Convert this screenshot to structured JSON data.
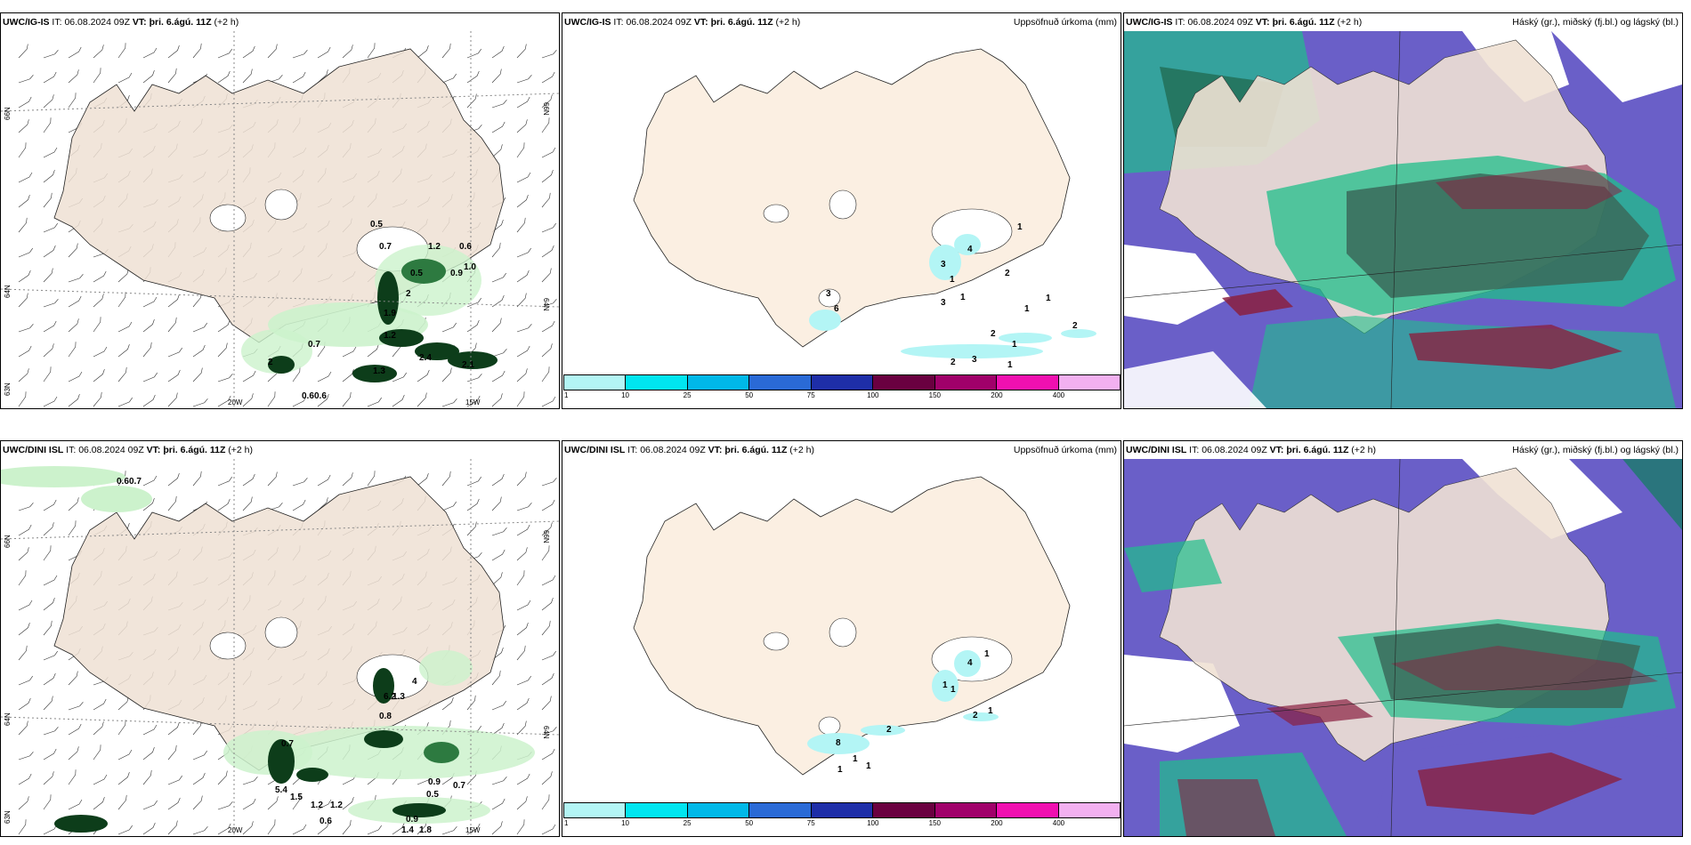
{
  "colors": {
    "land": "#efe1d4",
    "land_light": "#fbefe2",
    "light_green": "#ccf2cc",
    "mid_green": "#5fb06e",
    "dark_green": "#0d3d1a",
    "cloud_high": "#6a5fc8",
    "cloud_mid": "#1fbf8a",
    "cloud_low": "#8a2040"
  },
  "rows": [
    {
      "wind": {
        "model": "UWC/IG-IS",
        "it_label": "IT:",
        "it_value": "06.08.2024 09Z",
        "vt_label": "VT:",
        "vt_value": "þri. 6.ágú. 11Z",
        "lead": "(+2 h)",
        "precip_labels": [
          "0.5",
          "0.7",
          "1.2",
          "0.6",
          "0.5",
          "0.9",
          "1.0",
          "2",
          "0.7",
          "1.2",
          "2.4",
          "2.1",
          "2",
          "1.3",
          "0.6",
          "0.6",
          "1.9"
        ]
      },
      "precip": {
        "model": "UWC/IG-IS",
        "it_label": "IT:",
        "it_value": "06.08.2024 09Z",
        "vt_label": "VT:",
        "vt_value": "þri. 6.ágú. 11Z",
        "lead": "(+2 h)",
        "title": "Uppsöfnuð úrkoma (mm)",
        "labels": [
          "1",
          "2",
          "3",
          "4",
          "1",
          "3",
          "1",
          "1",
          "1",
          "1",
          "3",
          "6",
          "3",
          "2",
          "2",
          "1",
          "2"
        ]
      },
      "cloud": {
        "model": "UWC/IG-IS",
        "it_label": "IT:",
        "it_value": "06.08.2024 09Z",
        "vt_label": "VT:",
        "vt_value": "þri. 6.ágú. 11Z",
        "lead": "(+2 h)",
        "title": "Háský (gr.), miðský (fj.bl.) og lágský (bl.)"
      }
    },
    {
      "wind": {
        "model": "UWC/DINI ISL",
        "it_label": "IT:",
        "it_value": "06.08.2024 09Z",
        "vt_label": "VT:",
        "vt_value": "þri. 6.ágú. 11Z",
        "lead": "(+2 h)",
        "precip_labels": [
          "0.6",
          "0.7",
          "0.7",
          "5.4",
          "1.5",
          "1.2",
          "1.2",
          "0.6",
          "0.9",
          "0.5",
          "0.7",
          "0.9",
          "1.4",
          "1.8",
          "4",
          "6.2",
          "1.3",
          "0.8"
        ]
      },
      "precip": {
        "model": "UWC/DINI ISL",
        "it_label": "IT:",
        "it_value": "06.08.2024 09Z",
        "vt_label": "VT:",
        "vt_value": "þri. 6.ágú. 11Z",
        "lead": "(+2 h)",
        "title": "Uppsöfnuð úrkoma (mm)",
        "labels": [
          "1",
          "4",
          "1",
          "1",
          "2",
          "2",
          "1",
          "8",
          "1",
          "1",
          "1"
        ]
      },
      "cloud": {
        "model": "UWC/DINI ISL",
        "it_label": "IT:",
        "it_value": "06.08.2024 09Z",
        "vt_label": "VT:",
        "vt_value": "þri. 6.ágú. 11Z",
        "lead": "(+2 h)",
        "title": "Háský (gr.), miðský (fj.bl.) og lágský (bl.)"
      }
    }
  ],
  "axes": {
    "lat_66": "66N",
    "lat_64": "64N",
    "lat_63": "63N",
    "lon_20": "20W",
    "lon_15": "15W"
  },
  "colorbar": {
    "ticks": [
      "1",
      "10",
      "25",
      "50",
      "75",
      "100",
      "150",
      "200",
      "400"
    ],
    "colors": [
      "#b3f5f5",
      "#00e5f0",
      "#00b8e8",
      "#2a6ad6",
      "#1e2ea8",
      "#6a0040",
      "#a0006a",
      "#f010b0",
      "#f2b0f0"
    ]
  }
}
